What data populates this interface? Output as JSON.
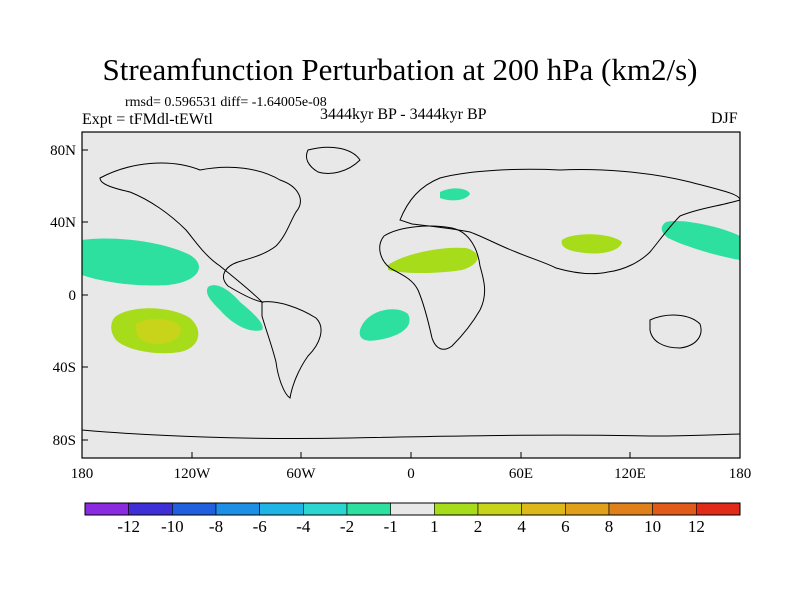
{
  "header": {
    "title": "Streamfunction Perturbation at 200 hPa (km2/s)",
    "stats": "rmsd= 0.596531 diff= -1.64005e-08",
    "left_label": "Expt = tFMdl-tEWtl",
    "center_label": "3444kyr BP - 3444kyr BP",
    "right_label": "DJF"
  },
  "axes": {
    "lat_labels": [
      "80N",
      "40N",
      "0",
      "40S",
      "80S"
    ],
    "lon_labels": [
      "180",
      "120W",
      "60W",
      "0",
      "60E",
      "120E",
      "180"
    ]
  },
  "colorbar": {
    "colors": [
      "#8a2be2",
      "#3f2fd6",
      "#1f5fe0",
      "#1e8fe6",
      "#1fb4e6",
      "#2bd6d0",
      "#2ee0a0",
      "#e8e8e8",
      "#a6dc1a",
      "#c8d41a",
      "#dcb81a",
      "#e0a01a",
      "#e0801a",
      "#e05a1a",
      "#e02a1a"
    ],
    "labels": [
      "-12",
      "-10",
      "-8",
      "-6",
      "-4",
      "-2",
      "-1",
      "1",
      "2",
      "4",
      "6",
      "8",
      "10",
      "12"
    ]
  },
  "colors": {
    "background": "#e8e8e8",
    "neg_contour": "#2ee0a0",
    "pos_contour_1": "#a6dc1a",
    "pos_contour_2": "#c8d41a"
  }
}
